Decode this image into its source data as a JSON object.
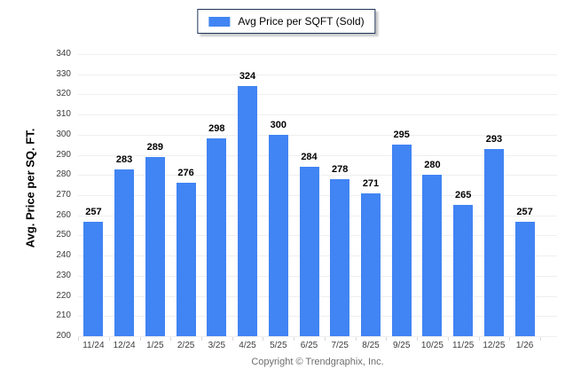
{
  "chart_data": {
    "type": "bar",
    "title": "",
    "legend": "Avg Price per SQFT (Sold)",
    "legend_position": "top-center",
    "ylabel": "Avg. Price per SQ. FT.",
    "xlabel": "",
    "categories": [
      "11/24",
      "12/24",
      "1/25",
      "2/25",
      "3/25",
      "4/25",
      "5/25",
      "6/25",
      "7/25",
      "8/25",
      "9/25",
      "10/25",
      "11/25",
      "12/25",
      "1/26"
    ],
    "values": [
      257,
      283,
      289,
      276,
      298,
      324,
      300,
      284,
      278,
      271,
      295,
      280,
      265,
      293,
      257
    ],
    "ylim": [
      200,
      340
    ],
    "ytick_step": 10,
    "grid": "horizontal"
  },
  "footer": {
    "copyright": "Copyright © Trendgraphix, Inc."
  },
  "colors": {
    "bar": "#4184f3",
    "grid": "#efefef",
    "tick_text": "#3c3c3c",
    "value_label": "#000000",
    "footer_text": "#6e6e6e",
    "legend_border": "#1d3458",
    "background": "#ffffff"
  }
}
